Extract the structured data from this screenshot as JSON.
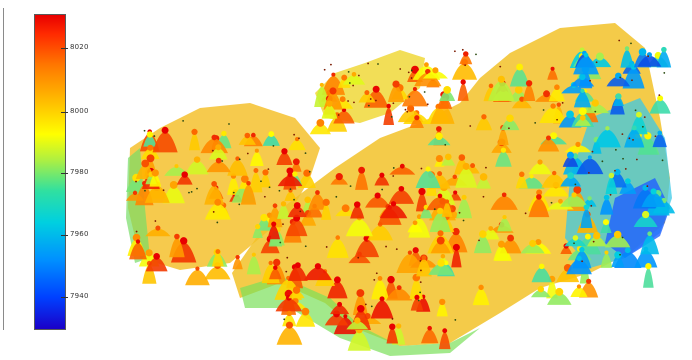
{
  "colorbar": {
    "ticks": [
      {
        "label": "8020",
        "value": 8020
      },
      {
        "label": "8000",
        "value": 8000
      },
      {
        "label": "7980",
        "value": 7980
      },
      {
        "label": "7960",
        "value": 7960
      },
      {
        "label": "7940",
        "value": 7940
      }
    ],
    "colors": [
      "#1a00c8",
      "#0090ff",
      "#00d0e0",
      "#ffff00",
      "#ff7800",
      "#e80000"
    ]
  }
}
